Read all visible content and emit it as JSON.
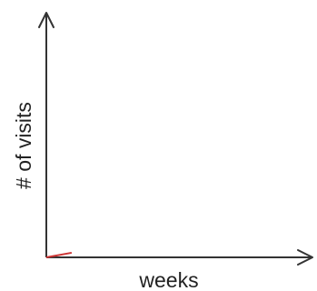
{
  "chart_data": {
    "type": "line",
    "xlabel": "weeks",
    "ylabel": "# of visits",
    "grid": false,
    "legend": "none",
    "axis_color": "#333333",
    "series": [
      {
        "color": "#cc3333",
        "points": [
          [
            0,
            0
          ],
          [
            0.1,
            0.02
          ]
        ]
      }
    ]
  }
}
